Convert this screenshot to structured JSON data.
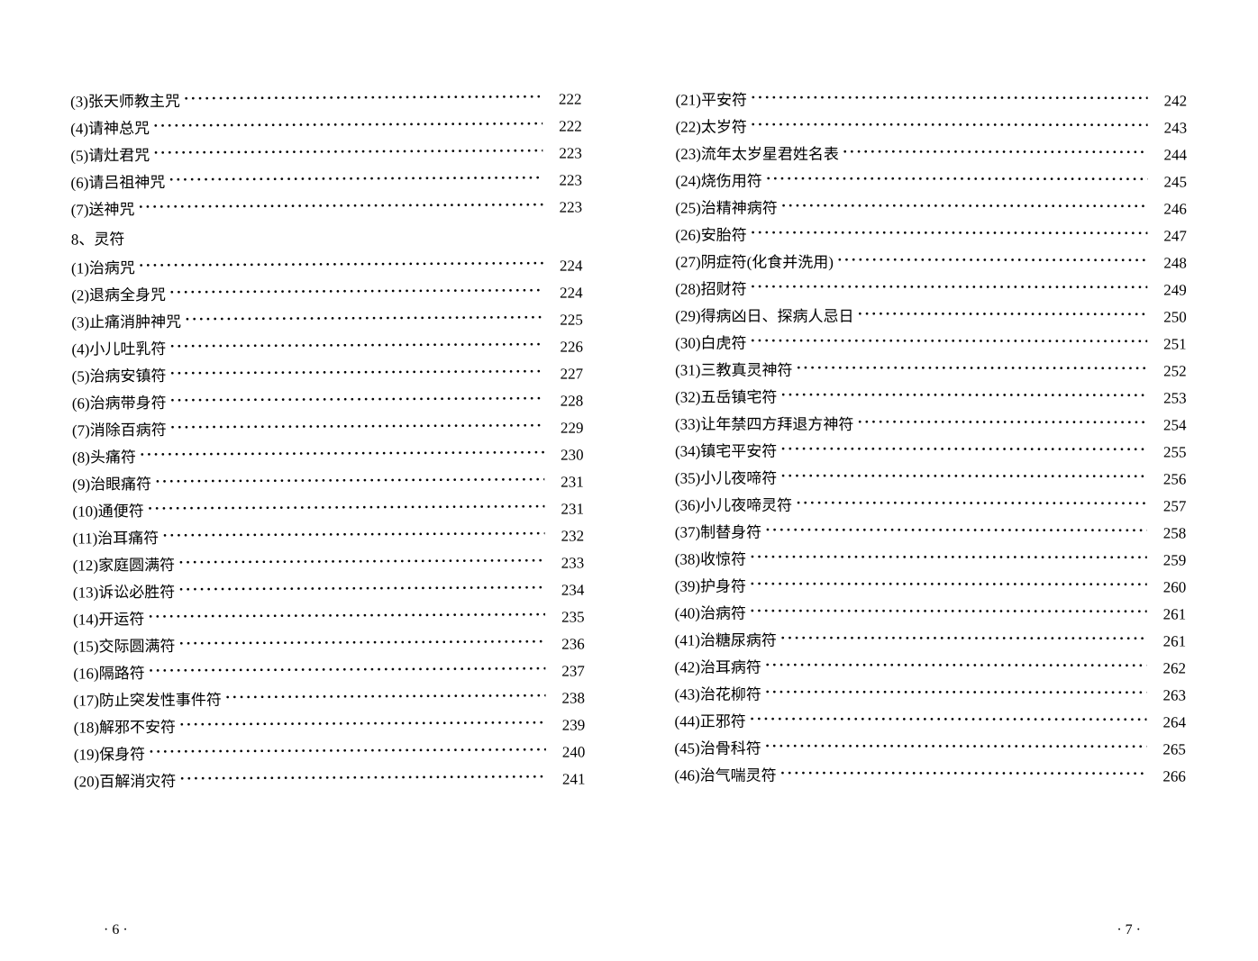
{
  "typography": {
    "font_family": "SimSun",
    "font_size_pt": 12,
    "line_height": 1.7,
    "text_color": "#000000",
    "background_color": "#ffffff",
    "leader_char": "·"
  },
  "left_page": {
    "page_number": "· 6 ·",
    "entries_top": [
      {
        "label": "(3)张天师教主咒",
        "page": "222"
      },
      {
        "label": "(4)请神总咒",
        "page": "222"
      },
      {
        "label": "(5)请灶君咒",
        "page": "223"
      },
      {
        "label": "(6)请吕祖神咒",
        "page": "223"
      },
      {
        "label": "(7)送神咒",
        "page": "223"
      }
    ],
    "section_heading": "8、灵符",
    "entries_bottom": [
      {
        "label": "(1)治病咒",
        "page": "224"
      },
      {
        "label": "(2)退病全身咒",
        "page": "224"
      },
      {
        "label": "(3)止痛消肿神咒",
        "page": "225"
      },
      {
        "label": "(4)小儿吐乳符",
        "page": "226"
      },
      {
        "label": "(5)治病安镇符",
        "page": "227"
      },
      {
        "label": "(6)治病带身符",
        "page": "228"
      },
      {
        "label": "(7)消除百病符",
        "page": "229"
      },
      {
        "label": "(8)头痛符",
        "page": "230"
      },
      {
        "label": "(9)治眼痛符",
        "page": "231"
      },
      {
        "label": "(10)通便符",
        "page": "231"
      },
      {
        "label": "(11)治耳痛符",
        "page": "232"
      },
      {
        "label": "(12)家庭圆满符",
        "page": "233"
      },
      {
        "label": "(13)诉讼必胜符",
        "page": "234"
      },
      {
        "label": "(14)开运符",
        "page": "235"
      },
      {
        "label": "(15)交际圆满符",
        "page": "236"
      },
      {
        "label": "(16)隔路符",
        "page": "237"
      },
      {
        "label": "(17)防止突发性事件符",
        "page": "238"
      },
      {
        "label": "(18)解邪不安符",
        "page": "239"
      },
      {
        "label": "(19)保身符",
        "page": "240"
      },
      {
        "label": "(20)百解消灾符",
        "page": "241"
      }
    ]
  },
  "right_page": {
    "page_number": "· 7 ·",
    "entries": [
      {
        "label": "(21)平安符",
        "page": "242"
      },
      {
        "label": "(22)太岁符",
        "page": "243"
      },
      {
        "label": "(23)流年太岁星君姓名表",
        "page": "244"
      },
      {
        "label": "(24)烧伤用符",
        "page": "245"
      },
      {
        "label": "(25)治精神病符",
        "page": "246"
      },
      {
        "label": "(26)安胎符",
        "page": "247"
      },
      {
        "label": "(27)阴症符(化食并洗用)",
        "page": "248"
      },
      {
        "label": "(28)招财符",
        "page": "249"
      },
      {
        "label": "(29)得病凶日、探病人忌日",
        "page": "250"
      },
      {
        "label": "(30)白虎符",
        "page": "251"
      },
      {
        "label": "(31)三教真灵神符",
        "page": "252"
      },
      {
        "label": "(32)五岳镇宅符",
        "page": "253"
      },
      {
        "label": "(33)让年禁四方拜退方神符",
        "page": "254"
      },
      {
        "label": "(34)镇宅平安符",
        "page": "255"
      },
      {
        "label": "(35)小儿夜啼符",
        "page": "256"
      },
      {
        "label": "(36)小儿夜啼灵符",
        "page": "257"
      },
      {
        "label": "(37)制替身符",
        "page": "258"
      },
      {
        "label": "(38)收惊符",
        "page": "259"
      },
      {
        "label": "(39)护身符",
        "page": "260"
      },
      {
        "label": "(40)治病符",
        "page": "261"
      },
      {
        "label": "(41)治糖尿病符",
        "page": "261"
      },
      {
        "label": "(42)治耳病符",
        "page": "262"
      },
      {
        "label": "(43)治花柳符",
        "page": "263"
      },
      {
        "label": "(44)正邪符",
        "page": "264"
      },
      {
        "label": "(45)治骨科符",
        "page": "265"
      },
      {
        "label": "(46)治气喘灵符",
        "page": "266"
      }
    ]
  }
}
